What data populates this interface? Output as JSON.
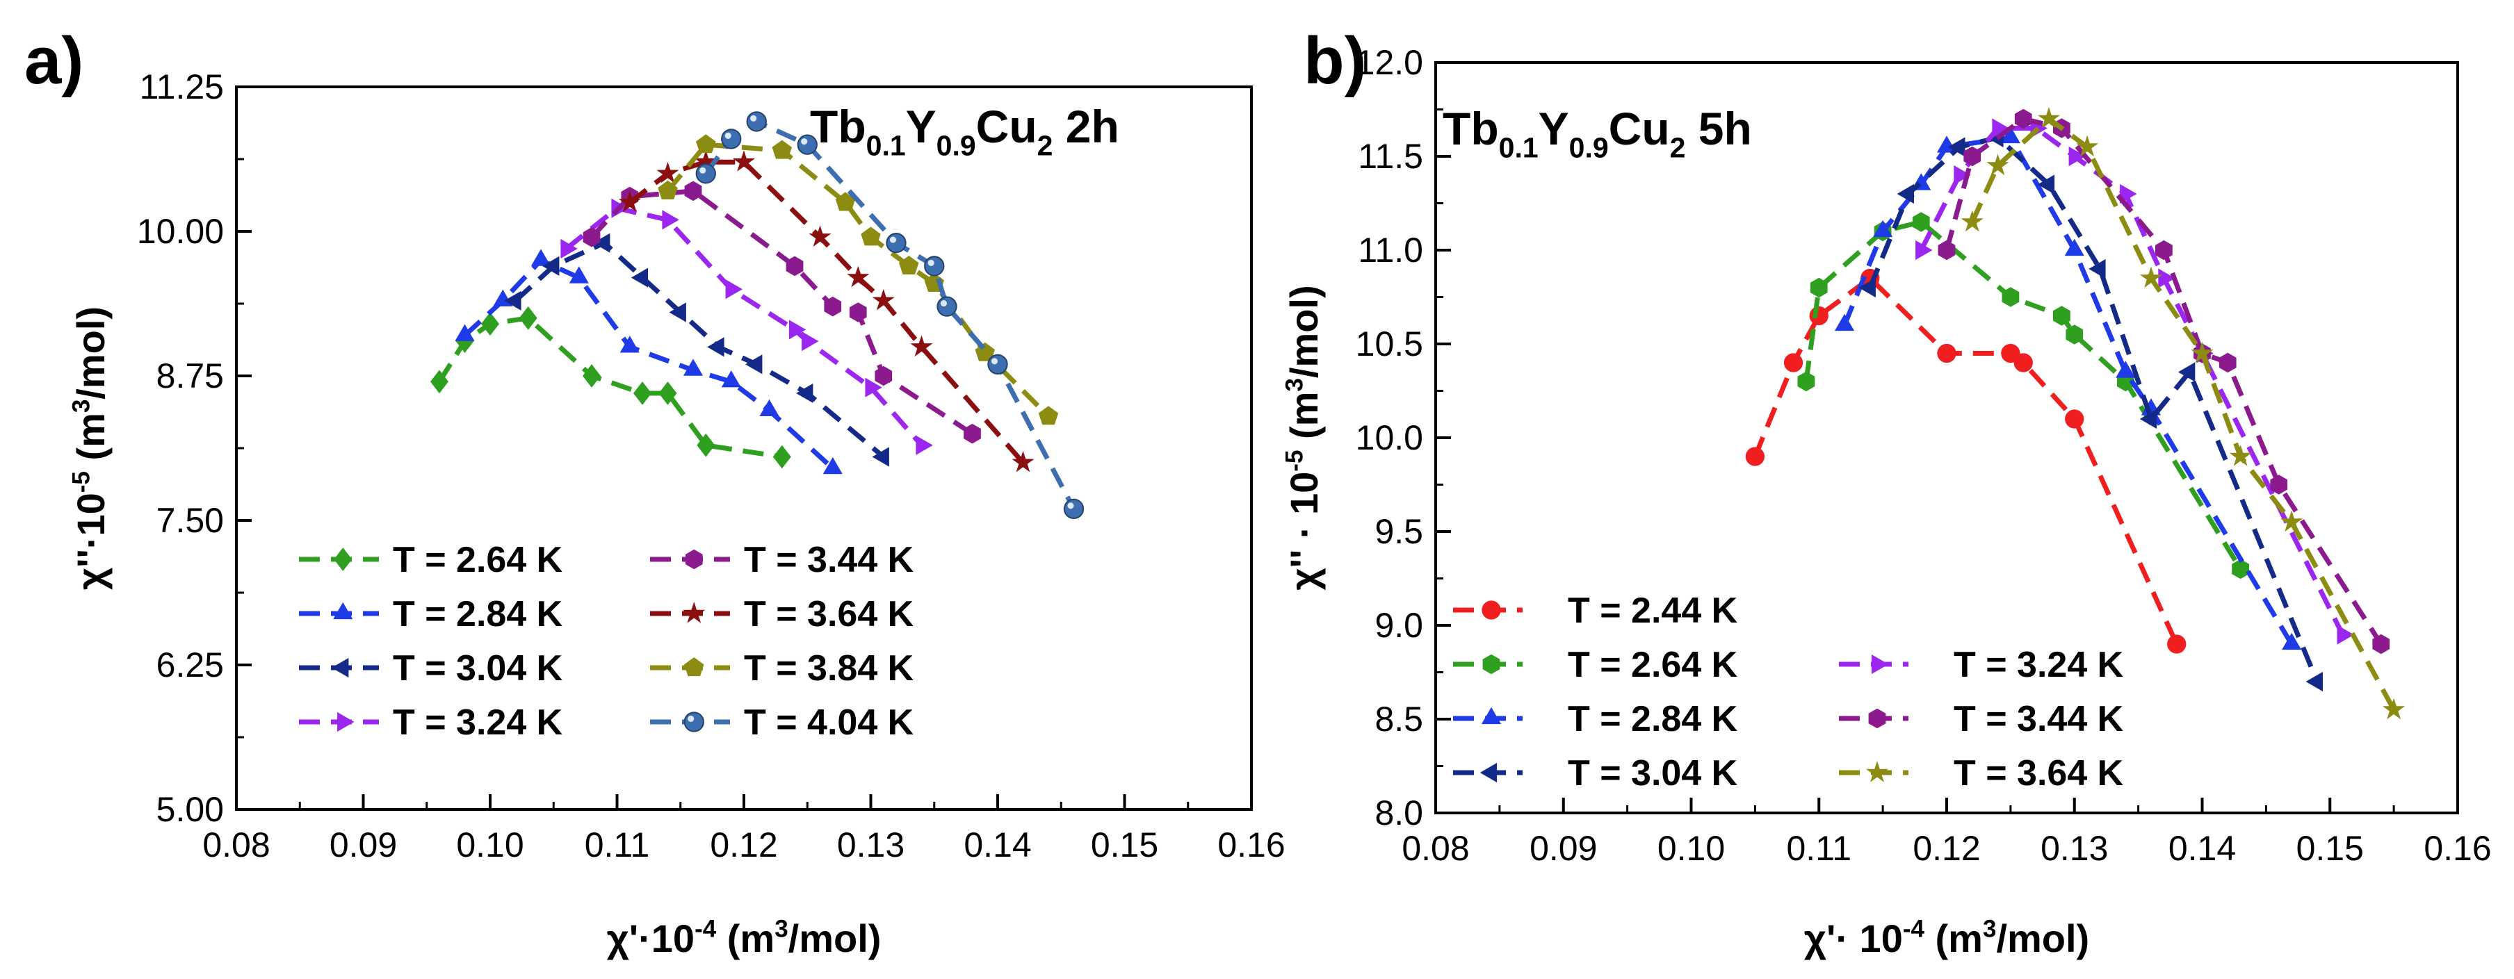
{
  "chart_data": [
    {
      "type": "line",
      "panel": "a)",
      "sample_label": {
        "parts": [
          {
            "t": "Tb",
            "sub": false
          },
          {
            "t": "0.1",
            "sub": true
          },
          {
            "t": "Y",
            "sub": false
          },
          {
            "t": "0.9",
            "sub": true
          },
          {
            "t": "Cu",
            "sub": false
          },
          {
            "t": "2",
            "sub": true
          },
          {
            "t": " 2h",
            "sub": false
          }
        ]
      },
      "xlabel": {
        "parts": [
          {
            "t": "χ'·10",
            "sup": false
          },
          {
            "t": "-4",
            "sup": true
          },
          {
            "t": " (m",
            "sup": false
          },
          {
            "t": "3",
            "sup": true
          },
          {
            "t": "/mol)",
            "sup": false
          }
        ]
      },
      "ylabel": {
        "parts": [
          {
            "t": "χ''·10",
            "sup": false
          },
          {
            "t": "-5",
            "sup": true
          },
          {
            "t": " (m",
            "sup": false
          },
          {
            "t": "3",
            "sup": true
          },
          {
            "t": "/mol)",
            "sup": false
          }
        ]
      },
      "xlim": [
        0.08,
        0.16
      ],
      "ylim": [
        5.0,
        11.25
      ],
      "xticks": [
        0.08,
        0.09,
        0.1,
        0.11,
        0.12,
        0.13,
        0.14,
        0.15,
        0.16
      ],
      "xtick_labels": [
        "0.08",
        "0.09",
        "0.10",
        "0.11",
        "0.12",
        "0.13",
        "0.14",
        "0.15",
        "0.16"
      ],
      "yticks": [
        5.0,
        6.25,
        7.5,
        8.75,
        10.0,
        11.25
      ],
      "ytick_labels": [
        "5.00",
        "6.25",
        "7.50",
        "8.75",
        "10.00",
        "11.25"
      ],
      "legend_columns": 2,
      "series": [
        {
          "name": "T = 2.64 K",
          "color": "#2E9F1F",
          "marker": "diamond",
          "x": [
            0.096,
            0.098,
            0.1,
            0.103,
            0.108,
            0.112,
            0.114,
            0.117,
            0.123
          ],
          "y": [
            8.7,
            9.05,
            9.2,
            9.25,
            8.75,
            8.6,
            8.6,
            8.15,
            8.05
          ]
        },
        {
          "name": "T = 2.84 K",
          "color": "#1F3BE8",
          "marker": "triangle-up",
          "x": [
            0.098,
            0.101,
            0.104,
            0.107,
            0.111,
            0.116,
            0.119,
            0.122,
            0.127
          ],
          "y": [
            9.1,
            9.4,
            9.75,
            9.6,
            9.0,
            8.8,
            8.7,
            8.45,
            7.95
          ]
        },
        {
          "name": "T = 3.04 K",
          "color": "#142A88",
          "marker": "triangle-left",
          "x": [
            0.102,
            0.105,
            0.109,
            0.112,
            0.115,
            0.118,
            0.121,
            0.125,
            0.131
          ],
          "y": [
            9.4,
            9.7,
            9.9,
            9.6,
            9.3,
            9.0,
            8.85,
            8.6,
            8.05
          ]
        },
        {
          "name": "T = 3.24 K",
          "color": "#9B26F0",
          "marker": "triangle-right",
          "x": [
            0.106,
            0.11,
            0.114,
            0.119,
            0.124,
            0.125,
            0.13,
            0.134
          ],
          "y": [
            9.85,
            10.2,
            10.1,
            9.5,
            9.15,
            9.05,
            8.65,
            8.15
          ]
        },
        {
          "name": "T = 3.44 K",
          "color": "#8B1A8E",
          "marker": "hexagon",
          "x": [
            0.108,
            0.111,
            0.116,
            0.124,
            0.127,
            0.129,
            0.131,
            0.138
          ],
          "y": [
            9.95,
            10.3,
            10.35,
            9.7,
            9.35,
            9.3,
            8.75,
            8.25
          ]
        },
        {
          "name": "T = 3.64 K",
          "color": "#8B0F0F",
          "marker": "star",
          "x": [
            0.111,
            0.114,
            0.117,
            0.12,
            0.126,
            0.129,
            0.131,
            0.134,
            0.142
          ],
          "y": [
            10.25,
            10.5,
            10.6,
            10.6,
            9.95,
            9.6,
            9.4,
            9.0,
            8.0
          ]
        },
        {
          "name": "T = 3.84 K",
          "color": "#8C8C12",
          "marker": "pentagon",
          "x": [
            0.114,
            0.117,
            0.123,
            0.128,
            0.13,
            0.133,
            0.135,
            0.139,
            0.144
          ],
          "y": [
            10.35,
            10.75,
            10.7,
            10.25,
            9.95,
            9.7,
            9.55,
            8.95,
            8.4
          ]
        },
        {
          "name": "T = 4.04 K",
          "color": "#3D6FB0",
          "marker": "sphere",
          "x": [
            0.117,
            0.119,
            0.121,
            0.125,
            0.132,
            0.135,
            0.136,
            0.14,
            0.146
          ],
          "y": [
            10.5,
            10.8,
            10.95,
            10.75,
            9.9,
            9.7,
            9.35,
            8.85,
            7.6
          ]
        }
      ]
    },
    {
      "type": "line",
      "panel": "b)",
      "sample_label": {
        "parts": [
          {
            "t": "Tb",
            "sub": false
          },
          {
            "t": "0.1",
            "sub": true
          },
          {
            "t": "Y",
            "sub": false
          },
          {
            "t": "0.9",
            "sub": true
          },
          {
            "t": "Cu",
            "sub": false
          },
          {
            "t": "2",
            "sub": true
          },
          {
            "t": " 5h",
            "sub": false
          }
        ]
      },
      "xlabel": {
        "parts": [
          {
            "t": "χ'· 10",
            "sup": false
          },
          {
            "t": "-4",
            "sup": true
          },
          {
            "t": " (m",
            "sup": false
          },
          {
            "t": "3",
            "sup": true
          },
          {
            "t": "/mol)",
            "sup": false
          }
        ]
      },
      "ylabel": {
        "parts": [
          {
            "t": "χ'' · 10",
            "sup": false
          },
          {
            "t": "-5",
            "sup": true
          },
          {
            "t": " (m",
            "sup": false
          },
          {
            "t": "3",
            "sup": true
          },
          {
            "t": "/mol)",
            "sup": false
          }
        ]
      },
      "xlim": [
        0.08,
        0.16
      ],
      "ylim": [
        8.0,
        12.0
      ],
      "xticks": [
        0.08,
        0.09,
        0.1,
        0.11,
        0.12,
        0.13,
        0.14,
        0.15,
        0.16
      ],
      "xtick_labels": [
        "0.08",
        "0.09",
        "0.10",
        "0.11",
        "0.12",
        "0.13",
        "0.14",
        "0.15",
        "0.16"
      ],
      "yticks": [
        8.0,
        8.5,
        9.0,
        9.5,
        10.0,
        10.5,
        11.0,
        11.5,
        12.0
      ],
      "ytick_labels": [
        "8.0",
        "8.5",
        "9.0",
        "9.5",
        "10.0",
        "10.5",
        "11.0",
        "11.5",
        "12.0"
      ],
      "legend_columns": 2,
      "series": [
        {
          "name": "T = 2.44 K",
          "color": "#F01E1E",
          "marker": "circle",
          "x": [
            0.105,
            0.108,
            0.11,
            0.114,
            0.12,
            0.125,
            0.126,
            0.13,
            0.138
          ],
          "y": [
            9.9,
            10.4,
            10.65,
            10.85,
            10.45,
            10.45,
            10.4,
            10.1,
            8.9
          ]
        },
        {
          "name": "T = 2.64 K",
          "color": "#2E9F1F",
          "marker": "hexagon",
          "x": [
            0.109,
            0.11,
            0.115,
            0.118,
            0.125,
            0.129,
            0.13,
            0.134,
            0.143
          ],
          "y": [
            10.3,
            10.8,
            11.1,
            11.15,
            10.75,
            10.65,
            10.55,
            10.3,
            9.3
          ]
        },
        {
          "name": "T = 2.84 K",
          "color": "#1F3BE8",
          "marker": "triangle-up",
          "x": [
            0.112,
            0.115,
            0.118,
            0.12,
            0.125,
            0.13,
            0.134,
            0.136,
            0.147
          ],
          "y": [
            10.6,
            11.1,
            11.35,
            11.55,
            11.6,
            11.0,
            10.35,
            10.15,
            8.9
          ]
        },
        {
          "name": "T = 3.04 K",
          "color": "#142A88",
          "marker": "triangle-left",
          "x": [
            0.114,
            0.117,
            0.121,
            0.124,
            0.128,
            0.132,
            0.136,
            0.139,
            0.149
          ],
          "y": [
            10.8,
            11.3,
            11.55,
            11.6,
            11.35,
            10.9,
            10.1,
            10.35,
            8.7
          ]
        },
        {
          "name": "T = 3.24 K",
          "color": "#9B26F0",
          "marker": "triangle-right",
          "x": [
            0.118,
            0.121,
            0.124,
            0.127,
            0.13,
            0.134,
            0.137,
            0.14,
            0.151
          ],
          "y": [
            11.0,
            11.4,
            11.65,
            11.65,
            11.5,
            11.3,
            10.85,
            10.45,
            8.95
          ]
        },
        {
          "name": "T = 3.44 K",
          "color": "#8B1A8E",
          "marker": "hexagon",
          "x": [
            0.12,
            0.122,
            0.126,
            0.129,
            0.137,
            0.14,
            0.142,
            0.146,
            0.154
          ],
          "y": [
            11.0,
            11.5,
            11.7,
            11.65,
            11.0,
            10.45,
            10.4,
            9.75,
            8.9
          ]
        },
        {
          "name": "T = 3.64 K",
          "color": "#8C8C12",
          "marker": "star",
          "x": [
            0.122,
            0.124,
            0.128,
            0.131,
            0.136,
            0.14,
            0.143,
            0.147,
            0.155
          ],
          "y": [
            11.15,
            11.45,
            11.7,
            11.55,
            10.85,
            10.45,
            9.9,
            9.55,
            8.55
          ]
        }
      ]
    }
  ]
}
